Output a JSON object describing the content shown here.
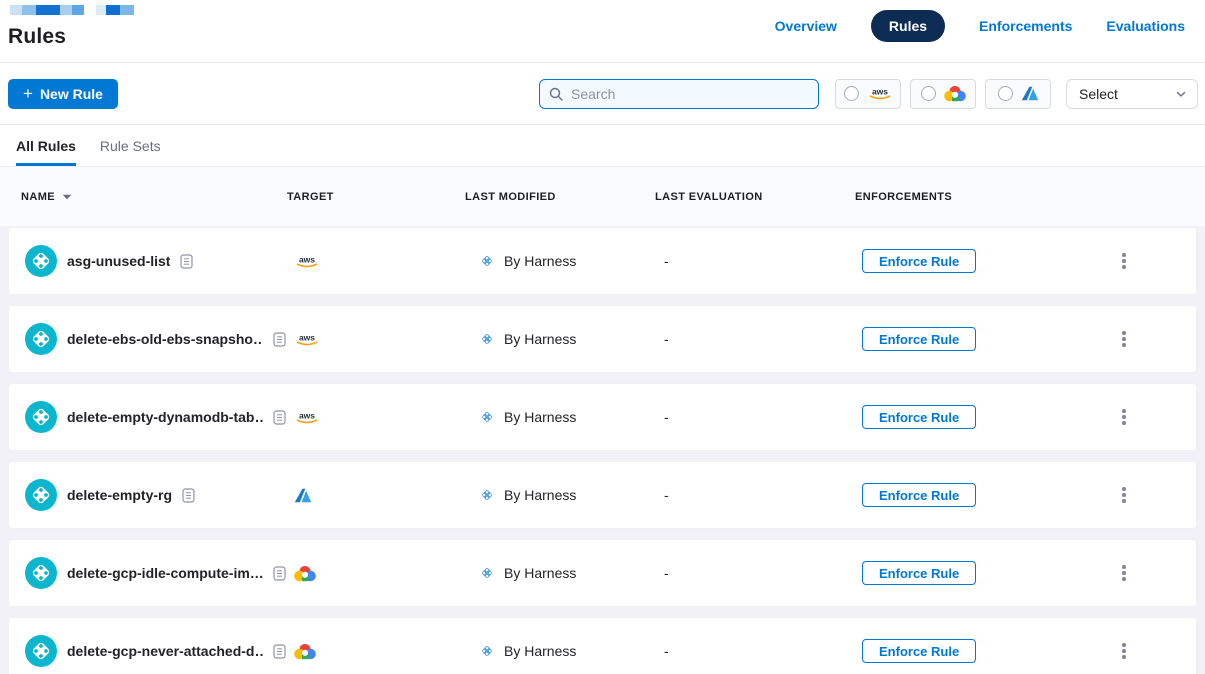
{
  "header": {
    "title": "Rules",
    "brand_blocks": [
      {
        "color": "#C9E0F6",
        "w": 12
      },
      {
        "color": "#8FC0EC",
        "w": 14
      },
      {
        "color": "#1473D0",
        "w": 24
      },
      {
        "color": "#A9CEF0",
        "w": 12
      },
      {
        "color": "#5EA7E2",
        "w": 12
      },
      {
        "color": "#DEEBF9",
        "w": 10,
        "gap": true
      },
      {
        "color": "#0F6FD0",
        "w": 14
      },
      {
        "color": "#7DB7E9",
        "w": 14
      }
    ],
    "nav": [
      {
        "label": "Overview",
        "active": false
      },
      {
        "label": "Rules",
        "active": true
      },
      {
        "label": "Enforcements",
        "active": false
      },
      {
        "label": "Evaluations",
        "active": false
      }
    ]
  },
  "toolbar": {
    "new_rule": {
      "icon": "+",
      "label": "New Rule"
    },
    "search": {
      "placeholder": "Search",
      "value": ""
    },
    "provider_filters": [
      {
        "id": "aws",
        "selected": false
      },
      {
        "id": "gcp",
        "selected": false
      },
      {
        "id": "azure",
        "selected": false
      }
    ],
    "select": {
      "value": "Select"
    }
  },
  "tabs": [
    {
      "label": "All Rules",
      "active": true
    },
    {
      "label": "Rule Sets",
      "active": false
    }
  ],
  "table": {
    "columns": [
      "NAME",
      "TARGET",
      "LAST MODIFIED",
      "LAST EVALUATION",
      "ENFORCEMENTS"
    ],
    "enforce_label": "Enforce Rule",
    "rows": [
      {
        "name": "asg-unused-list",
        "target": "aws",
        "last_modified": "By Harness",
        "last_evaluation": "-"
      },
      {
        "name": "delete-ebs-old-ebs-snapsho…",
        "target": "aws",
        "last_modified": "By Harness",
        "last_evaluation": "-"
      },
      {
        "name": "delete-empty-dynamodb-tab…",
        "target": "aws",
        "last_modified": "By Harness",
        "last_evaluation": "-"
      },
      {
        "name": "delete-empty-rg",
        "target": "azure",
        "last_modified": "By Harness",
        "last_evaluation": "-"
      },
      {
        "name": "delete-gcp-idle-compute-im…",
        "target": "gcp",
        "last_modified": "By Harness",
        "last_evaluation": "-"
      },
      {
        "name": "delete-gcp-never-attached-d…",
        "target": "gcp",
        "last_modified": "By Harness",
        "last_evaluation": "-"
      }
    ]
  },
  "logos": {
    "aws_text": "aws"
  },
  "colors": {
    "accent": "#0278D5",
    "nav_pill": "#0D2C53",
    "rule_icon_teal": "#0BB6CE",
    "aws_orange": "#FF9900",
    "gcp": {
      "red": "#EA4335",
      "yellow": "#FBBC05",
      "blue": "#4285F4",
      "green": "#34A853"
    },
    "azure_blue_dark": "#1B77C9",
    "azure_blue_light": "#35A0E8"
  }
}
